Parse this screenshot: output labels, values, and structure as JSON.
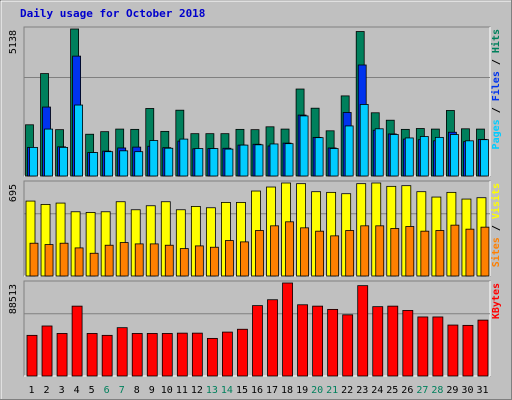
{
  "colors": {
    "background": "#c0c0c0",
    "plot": "#c0c0c0",
    "title": "#0000cc",
    "hits": "#00805c",
    "files": "#0033ee",
    "pages": "#00ccff",
    "visits": "#ffff00",
    "sites": "#ff8000",
    "kbytes": "#ff0000",
    "weekend": "#00805c",
    "weekday": "#000000"
  },
  "chart_data": [
    {
      "type": "bar",
      "title": "Daily usage for October 2018",
      "ylabel_parts": [
        "Pages",
        "Files",
        "Hits"
      ],
      "ylabel_separator": " / ",
      "y_max_label": "5138",
      "ylim": [
        0,
        5138
      ],
      "categories": [
        "1",
        "2",
        "3",
        "4",
        "5",
        "6",
        "7",
        "8",
        "9",
        "10",
        "11",
        "12",
        "13",
        "14",
        "15",
        "16",
        "17",
        "18",
        "19",
        "20",
        "21",
        "22",
        "23",
        "24",
        "25",
        "26",
        "27",
        "28",
        "29",
        "30",
        "31"
      ],
      "weekend_days": [
        "6",
        "7",
        "13",
        "14",
        "20",
        "21",
        "27",
        "28"
      ],
      "series": [
        {
          "name": "Hits",
          "values": [
            1790,
            3580,
            1620,
            5138,
            1460,
            1550,
            1640,
            1630,
            2360,
            1560,
            2300,
            1480,
            1480,
            1480,
            1630,
            1620,
            1720,
            1640,
            3040,
            2370,
            1580,
            2800,
            5050,
            2210,
            1950,
            1630,
            1660,
            1640,
            2290,
            1650,
            1640
          ]
        },
        {
          "name": "Files",
          "values": [
            1000,
            2410,
            1020,
            4190,
            820,
            870,
            980,
            1010,
            1040,
            990,
            1220,
            950,
            960,
            970,
            1080,
            1110,
            1050,
            1150,
            2130,
            1350,
            980,
            2220,
            3880,
            1600,
            1470,
            1290,
            1270,
            1230,
            1530,
            1200,
            1280
          ]
        },
        {
          "name": "Pages",
          "values": [
            1000,
            1640,
            1000,
            2480,
            820,
            850,
            880,
            850,
            1240,
            970,
            1290,
            960,
            960,
            940,
            1080,
            1090,
            1120,
            1130,
            2100,
            1340,
            960,
            1750,
            2500,
            1650,
            1450,
            1330,
            1380,
            1350,
            1450,
            1230,
            1270
          ]
        }
      ]
    },
    {
      "type": "bar",
      "ylabel_parts": [
        "Sites",
        "Visits"
      ],
      "ylabel_separator": " / ",
      "y_max_label": "695",
      "ylim": [
        0,
        695
      ],
      "categories": [
        "1",
        "2",
        "3",
        "4",
        "5",
        "6",
        "7",
        "8",
        "9",
        "10",
        "11",
        "12",
        "13",
        "14",
        "15",
        "16",
        "17",
        "18",
        "19",
        "20",
        "21",
        "22",
        "23",
        "24",
        "25",
        "26",
        "27",
        "28",
        "29",
        "30",
        "31"
      ],
      "series": [
        {
          "name": "Visits",
          "values": [
            560,
            535,
            545,
            480,
            475,
            480,
            555,
            495,
            525,
            555,
            495,
            520,
            510,
            550,
            550,
            635,
            665,
            695,
            690,
            630,
            625,
            615,
            690,
            695,
            670,
            675,
            630,
            590,
            625,
            575,
            585
          ]
        },
        {
          "name": "Sites",
          "values": [
            245,
            235,
            245,
            210,
            170,
            230,
            250,
            240,
            240,
            230,
            205,
            225,
            215,
            265,
            255,
            340,
            375,
            405,
            360,
            335,
            300,
            340,
            375,
            375,
            355,
            370,
            335,
            340,
            380,
            350,
            365
          ]
        }
      ]
    },
    {
      "type": "bar",
      "ylabel_parts": [
        "KBytes"
      ],
      "ylabel_separator": "",
      "y_max_label": "88513",
      "ylim": [
        0,
        88513
      ],
      "categories": [
        "1",
        "2",
        "3",
        "4",
        "5",
        "6",
        "7",
        "8",
        "9",
        "10",
        "11",
        "12",
        "13",
        "14",
        "15",
        "16",
        "17",
        "18",
        "19",
        "20",
        "21",
        "22",
        "23",
        "24",
        "25",
        "26",
        "27",
        "28",
        "29",
        "30",
        "31"
      ],
      "series": [
        {
          "name": "KBytes",
          "values": [
            38700,
            47600,
            40500,
            66500,
            40500,
            38700,
            46000,
            40500,
            40500,
            40500,
            40800,
            40800,
            35800,
            41800,
            44500,
            67000,
            72600,
            88513,
            67800,
            66500,
            63400,
            58200,
            86000,
            66000,
            66500,
            62400,
            56200,
            56200,
            48500,
            48200,
            53200
          ]
        }
      ]
    }
  ]
}
